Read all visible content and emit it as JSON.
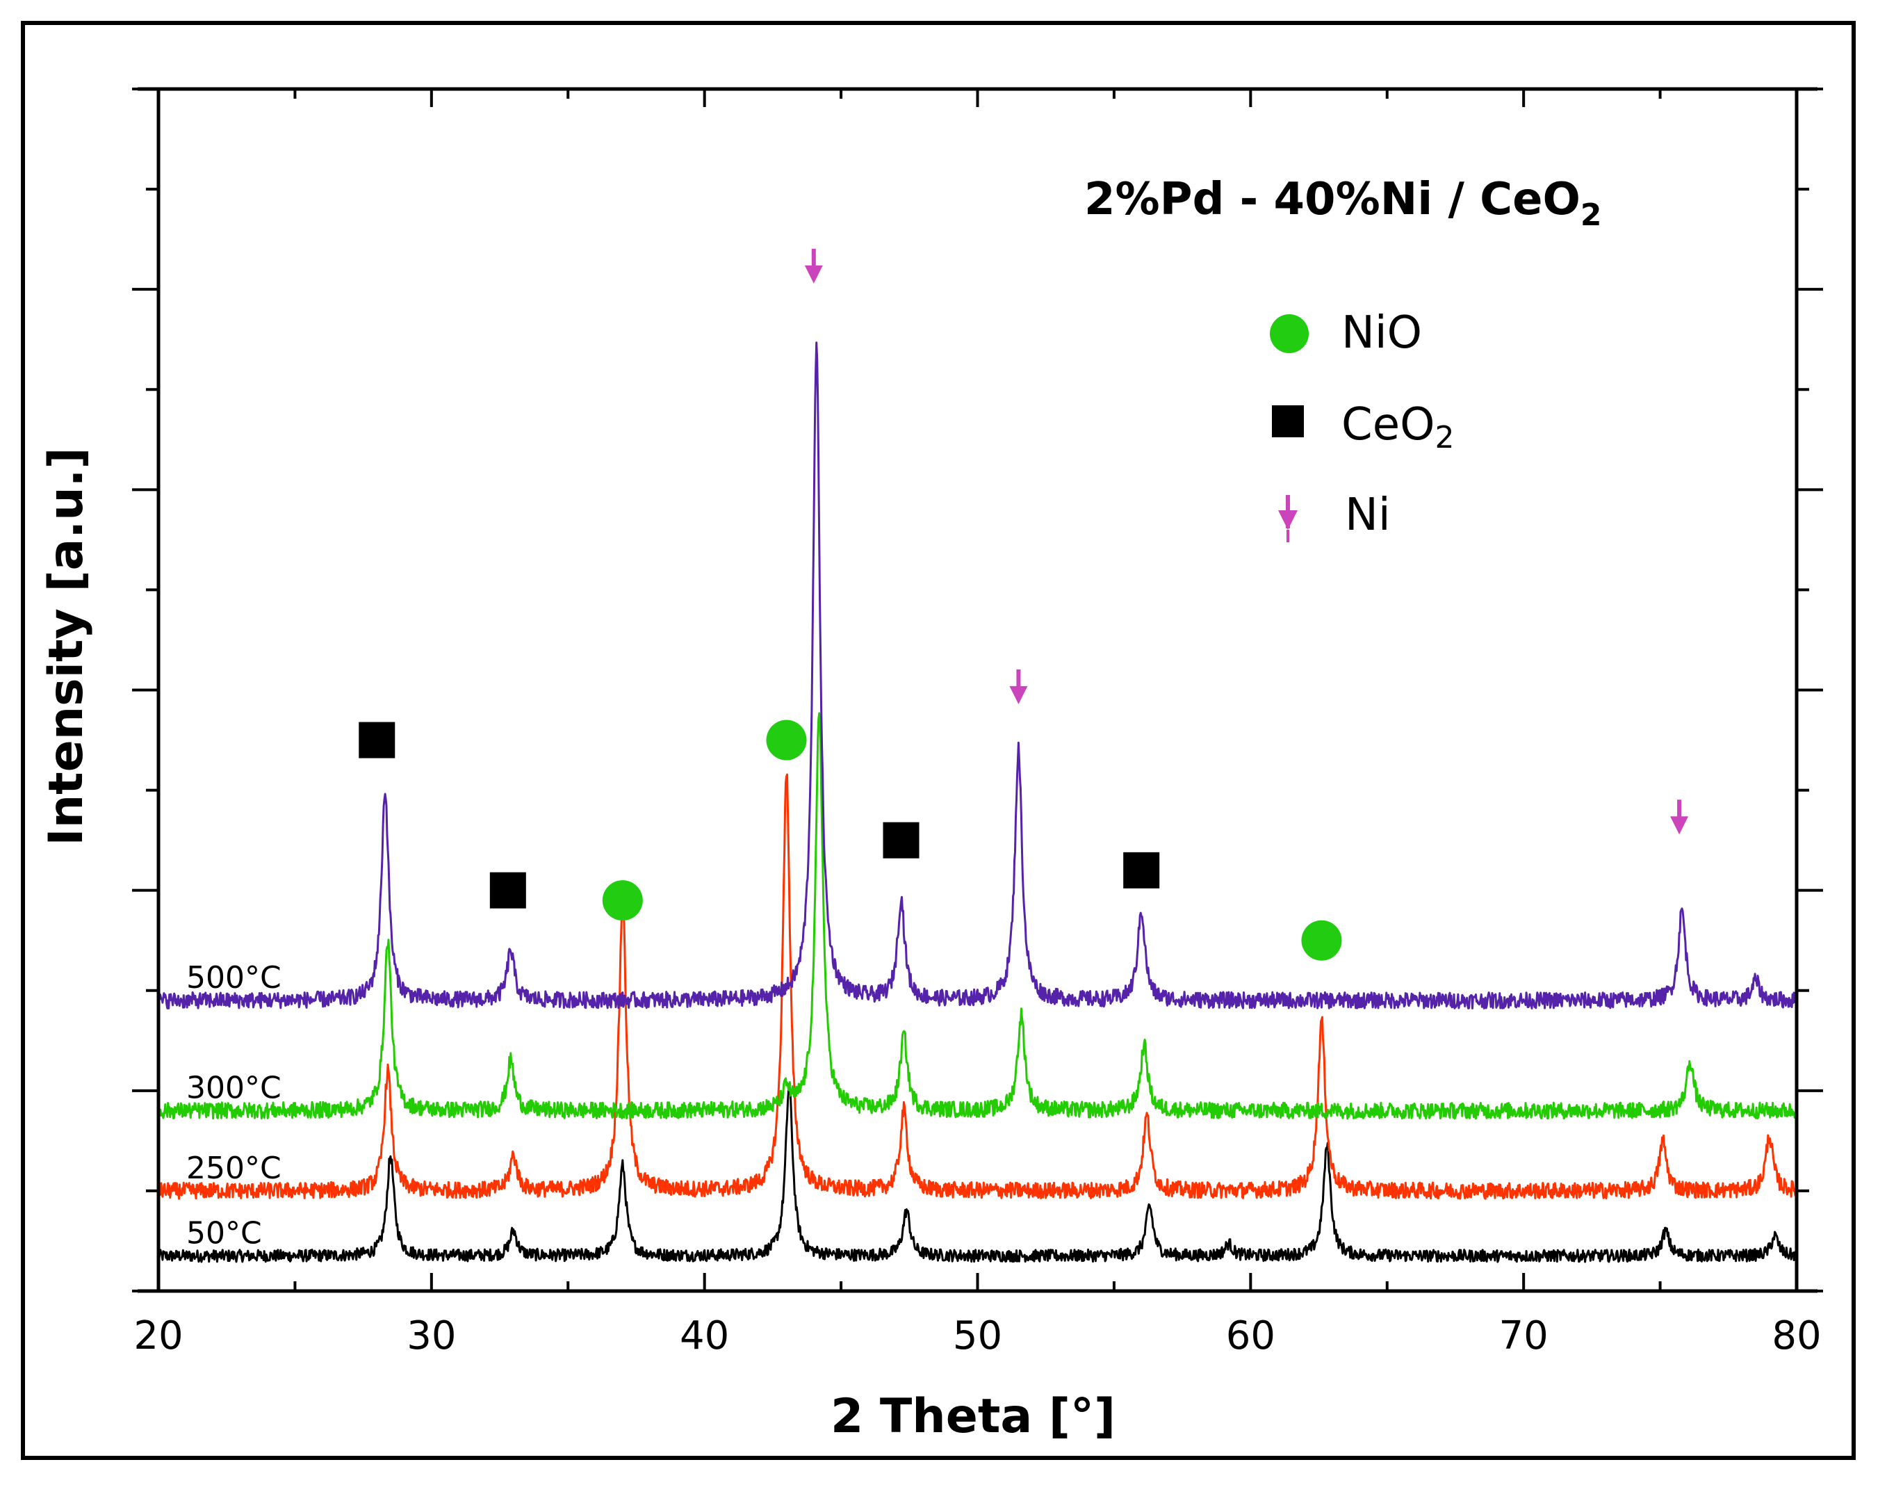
{
  "chart_data": {
    "type": "line",
    "title": "2%Pd - 40%Ni / CeO",
    "title_subscript": "2",
    "xlabel": "2 Theta [°]",
    "ylabel": "Intensity [a.u.]",
    "xlim": [
      20,
      80
    ],
    "ylim": [
      0,
      12
    ],
    "xticks": [
      20,
      30,
      40,
      50,
      60,
      70,
      80
    ],
    "xtick_labels": [
      "20",
      "30",
      "40",
      "50",
      "60",
      "70",
      "80"
    ],
    "grid": false,
    "legend_position": "top-right",
    "series": [
      {
        "name": "50°C",
        "color": "#000000",
        "baseline": 0.35,
        "noise": 0.06,
        "peaks": [
          [
            28.5,
            1.0
          ],
          [
            33.0,
            0.25
          ],
          [
            37.0,
            0.9
          ],
          [
            43.1,
            1.7
          ],
          [
            47.4,
            0.45
          ],
          [
            56.3,
            0.5
          ],
          [
            59.2,
            0.12
          ],
          [
            62.8,
            1.1
          ],
          [
            75.2,
            0.25
          ],
          [
            79.2,
            0.2
          ]
        ]
      },
      {
        "name": "250°C",
        "color": "#ff3300",
        "baseline": 1.0,
        "noise": 0.08,
        "peaks": [
          [
            28.4,
            1.2
          ],
          [
            33.0,
            0.35
          ],
          [
            37.0,
            2.9
          ],
          [
            43.0,
            4.2
          ],
          [
            47.3,
            0.8
          ],
          [
            56.2,
            0.75
          ],
          [
            62.6,
            1.7
          ],
          [
            75.1,
            0.5
          ],
          [
            79.0,
            0.55
          ]
        ]
      },
      {
        "name": "300°C",
        "color": "#22cc00",
        "baseline": 1.8,
        "noise": 0.08,
        "peaks": [
          [
            28.4,
            1.7
          ],
          [
            32.9,
            0.5
          ],
          [
            43.0,
            0.2
          ],
          [
            44.2,
            4.0
          ],
          [
            47.3,
            0.75
          ],
          [
            51.6,
            0.95
          ],
          [
            56.1,
            0.65
          ],
          [
            76.1,
            0.5
          ]
        ]
      },
      {
        "name": "500°C",
        "color": "#5522aa",
        "baseline": 2.9,
        "noise": 0.08,
        "peaks": [
          [
            28.3,
            2.1
          ],
          [
            32.9,
            0.5
          ],
          [
            44.1,
            6.5
          ],
          [
            47.2,
            1.0
          ],
          [
            51.5,
            2.5
          ],
          [
            56.0,
            0.9
          ],
          [
            75.8,
            0.9
          ],
          [
            78.5,
            0.2
          ]
        ]
      }
    ],
    "markers": [
      {
        "type": "CeO2",
        "x": 28.0,
        "y": 5.5
      },
      {
        "type": "CeO2",
        "x": 32.8,
        "y": 4.0
      },
      {
        "type": "NiO",
        "x": 37.0,
        "y": 3.9
      },
      {
        "type": "NiO",
        "x": 43.0,
        "y": 5.5
      },
      {
        "type": "Ni",
        "x": 44.0,
        "y": 10.1
      },
      {
        "type": "CeO2",
        "x": 47.2,
        "y": 4.5
      },
      {
        "type": "Ni",
        "x": 51.5,
        "y": 5.9
      },
      {
        "type": "CeO2",
        "x": 56.0,
        "y": 4.2
      },
      {
        "type": "NiO",
        "x": 62.6,
        "y": 3.5
      },
      {
        "type": "Ni",
        "x": 75.7,
        "y": 4.6
      }
    ],
    "legend": [
      {
        "type": "NiO",
        "label": "NiO",
        "color": "#22cc11"
      },
      {
        "type": "CeO2",
        "label": "CeO",
        "subscript": "2",
        "color": "#000000"
      },
      {
        "type": "Ni",
        "label": "Ni",
        "color": "#cc44bb"
      }
    ]
  }
}
